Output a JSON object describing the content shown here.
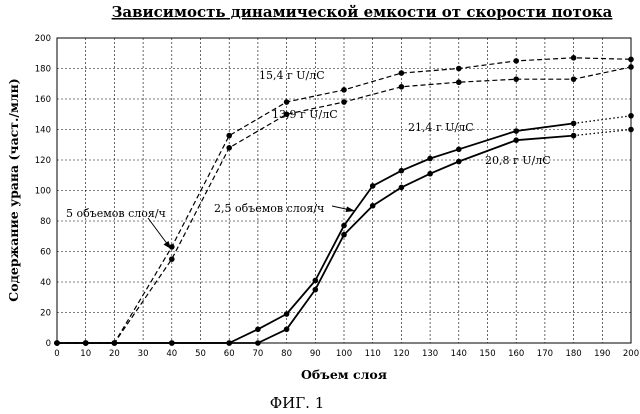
{
  "chart_data": {
    "type": "line",
    "title": "Зависимость динамической емкости от скорости потока",
    "xlabel": "Объем слоя",
    "ylabel": "Содержание урана (част./млн)",
    "xlim": [
      0,
      200
    ],
    "ylim": [
      0,
      200
    ],
    "xticks": [
      0,
      10,
      20,
      30,
      40,
      50,
      60,
      70,
      80,
      90,
      100,
      110,
      120,
      130,
      140,
      150,
      160,
      170,
      180,
      190,
      200
    ],
    "yticks": [
      0,
      20,
      40,
      60,
      80,
      100,
      120,
      140,
      160,
      180,
      200
    ],
    "grid": true,
    "caption": "ФИГ. 1",
    "series": [
      {
        "name": "15,4 г U/лС",
        "line_style": "dashed",
        "color": "#000000",
        "x": [
          0,
          10,
          20,
          40,
          60,
          80,
          100,
          120,
          140,
          160,
          180,
          200
        ],
        "y": [
          0,
          0,
          0,
          63,
          136,
          158,
          166,
          177,
          180,
          185,
          187,
          186
        ]
      },
      {
        "name": "13,9 г U/лС",
        "line_style": "dashed",
        "color": "#000000",
        "x": [
          0,
          10,
          20,
          40,
          60,
          80,
          100,
          120,
          140,
          160,
          180,
          200
        ],
        "y": [
          0,
          0,
          0,
          55,
          128,
          150,
          158,
          168,
          171,
          173,
          173,
          181
        ]
      },
      {
        "name": "21,4 г U/лС",
        "line_style": "solid",
        "color": "#000000",
        "x": [
          0,
          10,
          20,
          40,
          60,
          70,
          80,
          90,
          100,
          110,
          120,
          130,
          140,
          160,
          180
        ],
        "y": [
          0,
          0,
          0,
          0,
          0,
          9,
          19,
          41,
          77,
          103,
          113,
          121,
          127,
          139,
          144
        ],
        "dotted_extension": {
          "x": [
            180,
            200
          ],
          "y": [
            144,
            149
          ]
        }
      },
      {
        "name": "20,8 г U/лС",
        "line_style": "solid",
        "color": "#000000",
        "x": [
          0,
          10,
          20,
          40,
          60,
          70,
          80,
          90,
          100,
          110,
          120,
          130,
          140,
          160,
          180
        ],
        "y": [
          0,
          0,
          0,
          0,
          0,
          0,
          9,
          35,
          71,
          90,
          102,
          111,
          119,
          133,
          136
        ],
        "dotted_extension": {
          "x": [
            180,
            200
          ],
          "y": [
            136,
            140
          ]
        }
      }
    ],
    "annotations": [
      {
        "text": "15,4 г U/лС",
        "series": "15,4 г U/лС"
      },
      {
        "text": "13,9 г U/лС",
        "series": "13,9 г U/лС"
      },
      {
        "text": "21,4 г U/лС",
        "series": "21,4 г U/лС"
      },
      {
        "text": "20,8 г U/лС",
        "series": "20,8 г U/лС"
      },
      {
        "text": "5 объемов слоя/ч",
        "arrow_target": {
          "x": 40,
          "y": 60
        }
      },
      {
        "text": "2,5 объемов слоя/ч",
        "arrow_target": {
          "x": 99,
          "y": 73
        }
      }
    ]
  }
}
